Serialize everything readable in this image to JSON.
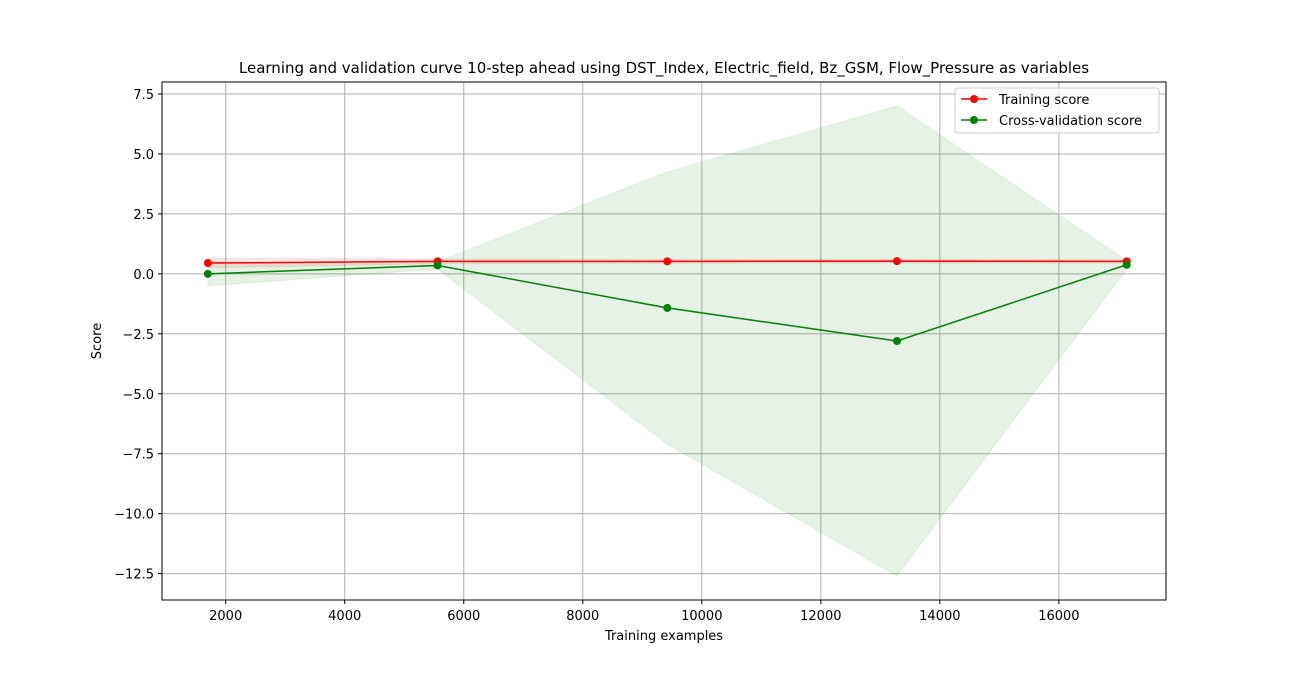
{
  "chart_data": {
    "type": "line",
    "title": "Learning and validation curve 10-step ahead using DST_Index, Electric_field, Bz_GSM, Flow_Pressure as variables",
    "xlabel": "Training examples",
    "ylabel": "Score",
    "xlim": [
      930,
      17800
    ],
    "ylim": [
      -13.6,
      8.0
    ],
    "xticks": [
      2000,
      4000,
      6000,
      8000,
      10000,
      12000,
      14000,
      16000
    ],
    "xtick_labels": [
      "2000",
      "4000",
      "6000",
      "8000",
      "10000",
      "12000",
      "14000",
      "16000"
    ],
    "yticks": [
      7.5,
      5.0,
      2.5,
      0.0,
      -2.5,
      -5.0,
      -7.5,
      -10.0,
      -12.5
    ],
    "ytick_labels": [
      "7.5",
      "5.0",
      "2.5",
      "0.0",
      "−2.5",
      "−5.0",
      "−7.5",
      "−10.0",
      "−12.5"
    ],
    "grid": true,
    "legend_position": "upper right",
    "x": [
      1700,
      5560,
      9420,
      13280,
      17140
    ],
    "series": [
      {
        "name": "Training score",
        "color": "#ff0000",
        "values": [
          0.45,
          0.52,
          0.52,
          0.53,
          0.52
        ],
        "band_upper": [
          0.65,
          0.62,
          0.6,
          0.6,
          0.6
        ],
        "band_lower": [
          0.25,
          0.42,
          0.44,
          0.46,
          0.44
        ]
      },
      {
        "name": "Cross-validation score",
        "color": "#008000",
        "values": [
          0.0,
          0.35,
          -1.42,
          -2.8,
          0.38
        ],
        "band_upper": [
          0.5,
          0.5,
          4.25,
          7.0,
          0.55
        ],
        "band_lower": [
          -0.5,
          0.2,
          -7.1,
          -12.6,
          0.2
        ]
      }
    ]
  }
}
